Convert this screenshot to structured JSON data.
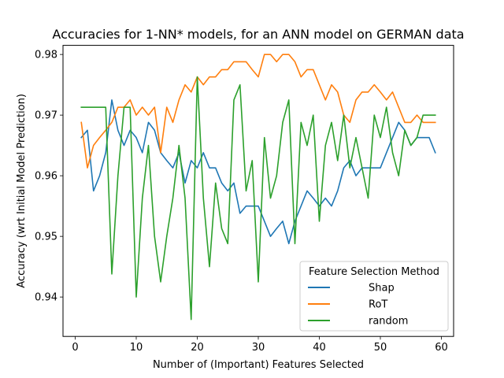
{
  "chart_data": {
    "type": "line",
    "title": "Accuracies for 1-NN* models, for an ANN model on GERMAN data",
    "xlabel": "Number of (Important) Features Selected",
    "ylabel": "Accuracy (wrt Initial Model Prediction)",
    "xlim": [
      -2,
      62
    ],
    "ylim": [
      0.9335,
      0.9815
    ],
    "xticks": [
      0,
      10,
      20,
      30,
      40,
      50,
      60
    ],
    "yticks": [
      0.94,
      0.95,
      0.96,
      0.97,
      0.98
    ],
    "ytick_labels": [
      "0.94",
      "0.95",
      "0.96",
      "0.97",
      "0.98"
    ],
    "grid": false,
    "legend": {
      "title": "Feature Selection Method",
      "position": "lower-right"
    },
    "x": [
      1,
      2,
      3,
      4,
      5,
      6,
      7,
      8,
      9,
      10,
      11,
      12,
      13,
      14,
      15,
      16,
      17,
      18,
      19,
      20,
      21,
      22,
      23,
      24,
      25,
      26,
      27,
      28,
      29,
      30,
      31,
      32,
      33,
      34,
      35,
      36,
      37,
      38,
      39,
      40,
      41,
      42,
      43,
      44,
      45,
      46,
      47,
      48,
      49,
      50,
      51,
      52,
      53,
      54,
      55,
      56,
      57,
      58,
      59
    ],
    "series": [
      {
        "name": "Shap",
        "color": "#1f77b4",
        "values": [
          0.9663,
          0.9675,
          0.9575,
          0.96,
          0.9638,
          0.9725,
          0.9675,
          0.965,
          0.9675,
          0.9663,
          0.9638,
          0.9688,
          0.9675,
          0.9638,
          0.9625,
          0.9613,
          0.9638,
          0.9588,
          0.9625,
          0.9613,
          0.9638,
          0.9613,
          0.9613,
          0.9588,
          0.9575,
          0.9588,
          0.9538,
          0.955,
          0.955,
          0.955,
          0.9525,
          0.95,
          0.9513,
          0.9525,
          0.9488,
          0.9525,
          0.955,
          0.9575,
          0.9563,
          0.955,
          0.9563,
          0.955,
          0.9575,
          0.9613,
          0.9625,
          0.96,
          0.9613,
          0.9613,
          0.9613,
          0.9613,
          0.9638,
          0.9663,
          0.9688,
          0.9675,
          0.965,
          0.9663,
          0.9663,
          0.9663,
          0.9638
        ]
      },
      {
        "name": "RoT",
        "color": "#ff7f0e",
        "values": [
          0.9688,
          0.9613,
          0.965,
          0.9663,
          0.9675,
          0.9688,
          0.9713,
          0.9713,
          0.9725,
          0.97,
          0.9713,
          0.97,
          0.9713,
          0.9638,
          0.9713,
          0.9688,
          0.9725,
          0.975,
          0.9738,
          0.9763,
          0.975,
          0.9763,
          0.9763,
          0.9775,
          0.9775,
          0.9788,
          0.9788,
          0.9788,
          0.9775,
          0.9763,
          0.98,
          0.98,
          0.9788,
          0.98,
          0.98,
          0.9788,
          0.9763,
          0.9775,
          0.9775,
          0.975,
          0.9725,
          0.975,
          0.9738,
          0.97,
          0.9688,
          0.9725,
          0.9738,
          0.9738,
          0.975,
          0.9738,
          0.9725,
          0.9738,
          0.9713,
          0.9688,
          0.9688,
          0.97,
          0.9688,
          0.9688,
          0.9688
        ]
      },
      {
        "name": "random",
        "color": "#2ca02c",
        "values": [
          0.9713,
          0.9713,
          0.9713,
          0.9713,
          0.9713,
          0.9438,
          0.96,
          0.9713,
          0.9713,
          0.94,
          0.9563,
          0.965,
          0.95,
          0.9425,
          0.95,
          0.9563,
          0.965,
          0.9563,
          0.9363,
          0.9763,
          0.9563,
          0.945,
          0.9588,
          0.9513,
          0.9488,
          0.9725,
          0.975,
          0.9575,
          0.9625,
          0.9425,
          0.9663,
          0.9563,
          0.96,
          0.9688,
          0.9725,
          0.9488,
          0.9688,
          0.965,
          0.97,
          0.9525,
          0.965,
          0.9688,
          0.9625,
          0.97,
          0.9613,
          0.9663,
          0.9613,
          0.9563,
          0.97,
          0.9663,
          0.9713,
          0.9638,
          0.96,
          0.9675,
          0.965,
          0.9663,
          0.97,
          0.97,
          0.97
        ]
      }
    ]
  }
}
